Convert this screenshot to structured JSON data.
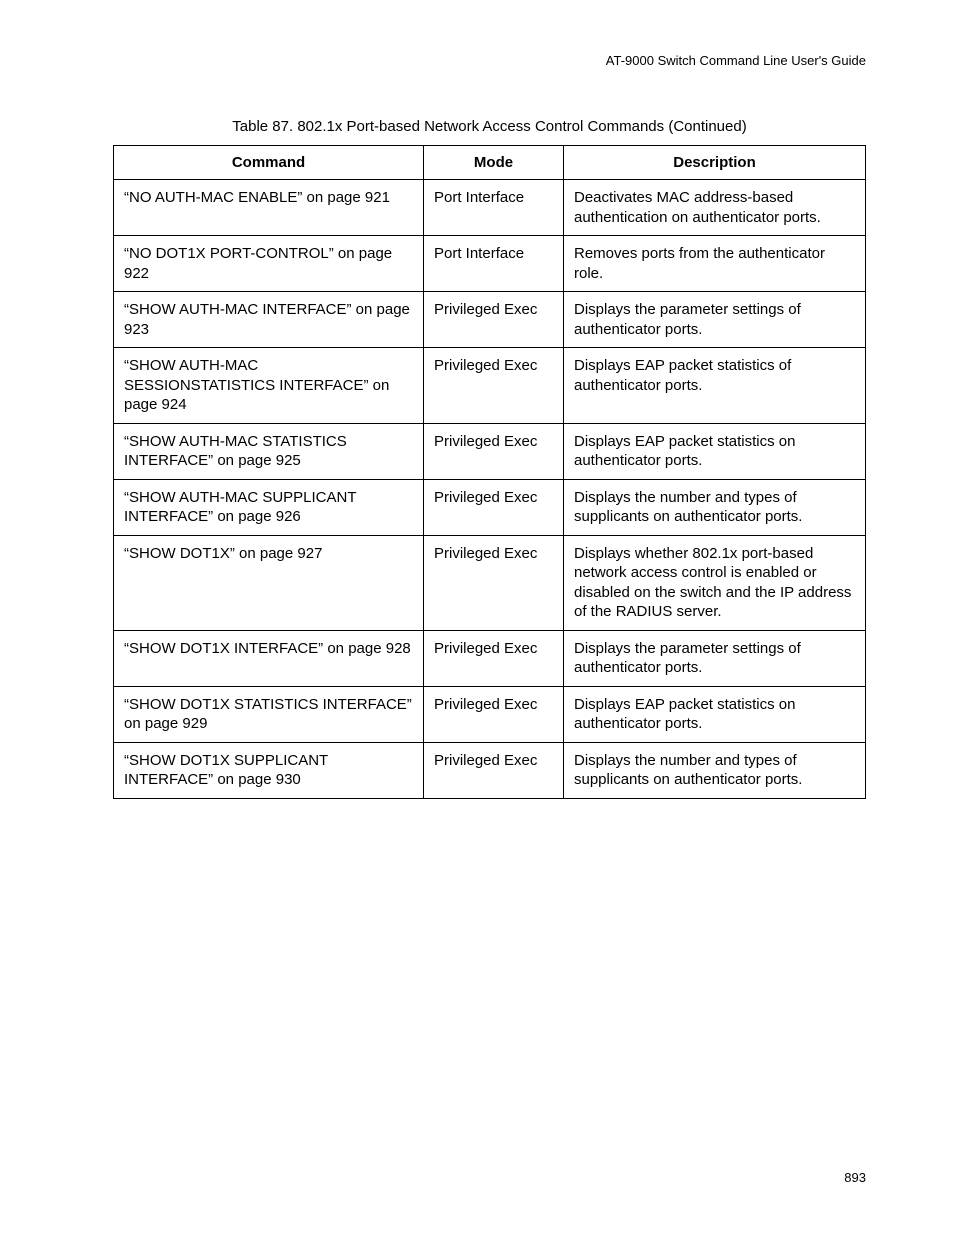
{
  "header": {
    "guide_title": "AT-9000 Switch Command Line User's Guide"
  },
  "table": {
    "caption": "Table 87. 802.1x Port-based Network Access Control Commands (Continued)",
    "headers": {
      "command": "Command",
      "mode": "Mode",
      "description": "Description"
    },
    "rows": [
      {
        "command": "“NO AUTH-MAC ENABLE” on page 921",
        "mode": "Port Interface",
        "description": "Deactivates MAC address-based authentication on authenticator ports."
      },
      {
        "command": "“NO DOT1X PORT-CONTROL” on page 922",
        "mode": "Port Interface",
        "description": "Removes ports from the authenticator role."
      },
      {
        "command": "“SHOW AUTH-MAC INTERFACE” on page 923",
        "mode": "Privileged Exec",
        "description": "Displays the parameter settings of authenticator ports."
      },
      {
        "command": "“SHOW AUTH-MAC SESSIONSTATISTICS INTERFACE” on page 924",
        "mode": "Privileged Exec",
        "description": "Displays EAP packet statistics of authenticator ports."
      },
      {
        "command": "“SHOW AUTH-MAC STATISTICS INTERFACE” on page 925",
        "mode": "Privileged Exec",
        "description": "Displays EAP packet statistics on authenticator ports."
      },
      {
        "command": "“SHOW AUTH-MAC SUPPLICANT INTERFACE” on page 926",
        "mode": "Privileged Exec",
        "description": "Displays the number and types of supplicants on authenticator ports."
      },
      {
        "command": "“SHOW DOT1X” on page 927",
        "mode": "Privileged Exec",
        "description": "Displays whether 802.1x port-based network access control is enabled or disabled on the switch and the IP address of the RADIUS server."
      },
      {
        "command": "“SHOW DOT1X INTERFACE” on page 928",
        "mode": "Privileged Exec",
        "description": "Displays the parameter settings of authenticator ports."
      },
      {
        "command": "“SHOW DOT1X STATISTICS INTERFACE” on page 929",
        "mode": "Privileged Exec",
        "description": "Displays EAP packet statistics on authenticator ports."
      },
      {
        "command": "“SHOW DOT1X SUPPLICANT INTERFACE” on page 930",
        "mode": "Privileged Exec",
        "description": "Displays the number and types of supplicants on authenticator ports."
      }
    ]
  },
  "footer": {
    "page_number": "893"
  }
}
